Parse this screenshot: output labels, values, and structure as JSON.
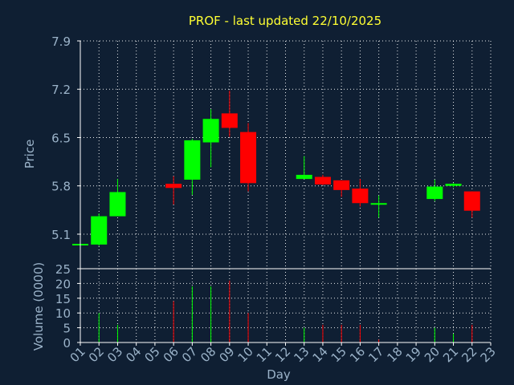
{
  "chart_data": {
    "type": "candlestick",
    "title": "PROF - last updated 22/10/2025",
    "colors": {
      "background": "#0f1f33",
      "plot_background": "#0f1f33",
      "up": "#00ff00",
      "down": "#ff0000",
      "axis": "#ffffff",
      "grid": "#ffffff",
      "text": "#9bb3c9",
      "title": "#ffff33"
    },
    "x_axis": {
      "label": "Day",
      "tick_labels": [
        "01",
        "02",
        "03",
        "04",
        "05",
        "06",
        "07",
        "08",
        "09",
        "10",
        "11",
        "12",
        "13",
        "14",
        "15",
        "16",
        "17",
        "18",
        "19",
        "20",
        "21",
        "22",
        "23"
      ],
      "range": [
        1,
        23
      ]
    },
    "price_panel": {
      "ylabel": "Price",
      "ylim": [
        4.6,
        7.9
      ],
      "ticks": [
        "5.1",
        "5.8",
        "6.5",
        "7.2",
        "7.9"
      ],
      "grid": true,
      "candles": [
        {
          "day": 1,
          "open": 4.95,
          "high": 4.98,
          "low": 4.93,
          "close": 4.96
        },
        {
          "day": 2,
          "open": 4.95,
          "high": 5.4,
          "low": 4.93,
          "close": 5.36
        },
        {
          "day": 3,
          "open": 5.36,
          "high": 5.9,
          "low": 5.36,
          "close": 5.71
        },
        {
          "day": 6,
          "open": 5.83,
          "high": 5.94,
          "low": 5.53,
          "close": 5.77
        },
        {
          "day": 7,
          "open": 5.89,
          "high": 6.48,
          "low": 5.67,
          "close": 6.46
        },
        {
          "day": 8,
          "open": 6.43,
          "high": 6.91,
          "low": 6.07,
          "close": 6.77
        },
        {
          "day": 9,
          "open": 6.85,
          "high": 7.18,
          "low": 6.51,
          "close": 6.64
        },
        {
          "day": 10,
          "open": 6.58,
          "high": 6.71,
          "low": 5.72,
          "close": 5.84
        },
        {
          "day": 13,
          "open": 5.9,
          "high": 6.23,
          "low": 5.9,
          "close": 5.96
        },
        {
          "day": 14,
          "open": 5.93,
          "high": 5.96,
          "low": 5.81,
          "close": 5.82
        },
        {
          "day": 15,
          "open": 5.88,
          "high": 5.88,
          "low": 5.64,
          "close": 5.74
        },
        {
          "day": 16,
          "open": 5.76,
          "high": 5.9,
          "low": 5.5,
          "close": 5.55
        },
        {
          "day": 17,
          "open": 5.54,
          "high": 5.66,
          "low": 5.34,
          "close": 5.55
        },
        {
          "day": 20,
          "open": 5.61,
          "high": 5.89,
          "low": 5.58,
          "close": 5.79
        },
        {
          "day": 21,
          "open": 5.8,
          "high": 5.84,
          "low": 5.78,
          "close": 5.83
        },
        {
          "day": 22,
          "open": 5.72,
          "high": 5.72,
          "low": 5.34,
          "close": 5.44
        }
      ]
    },
    "volume_panel": {
      "ylabel": "Volume (0000)",
      "ylim": [
        0,
        25
      ],
      "ticks": [
        "0",
        "5",
        "10",
        "15",
        "20",
        "25"
      ],
      "grid": true,
      "bars": [
        {
          "day": 2,
          "value": 10,
          "direction": "up"
        },
        {
          "day": 3,
          "value": 6,
          "direction": "up"
        },
        {
          "day": 6,
          "value": 14,
          "direction": "down"
        },
        {
          "day": 7,
          "value": 19,
          "direction": "up"
        },
        {
          "day": 8,
          "value": 19,
          "direction": "up"
        },
        {
          "day": 9,
          "value": 21,
          "direction": "down"
        },
        {
          "day": 10,
          "value": 10,
          "direction": "down"
        },
        {
          "day": 13,
          "value": 5,
          "direction": "up"
        },
        {
          "day": 14,
          "value": 6,
          "direction": "down"
        },
        {
          "day": 15,
          "value": 6,
          "direction": "down"
        },
        {
          "day": 16,
          "value": 6,
          "direction": "down"
        },
        {
          "day": 17,
          "value": 1,
          "direction": "down"
        },
        {
          "day": 20,
          "value": 5,
          "direction": "up"
        },
        {
          "day": 21,
          "value": 3,
          "direction": "up"
        },
        {
          "day": 22,
          "value": 6,
          "direction": "down"
        }
      ]
    }
  }
}
